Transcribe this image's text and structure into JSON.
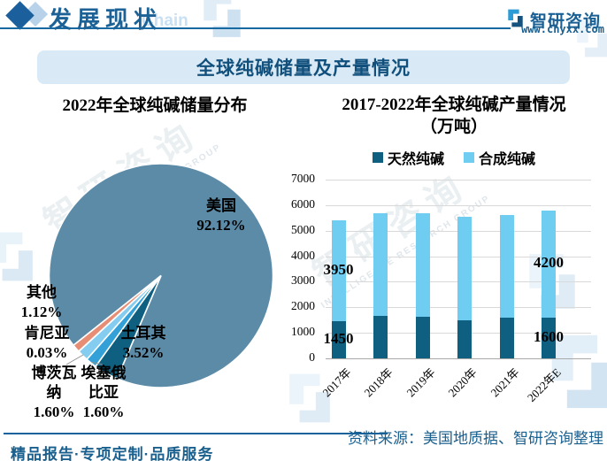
{
  "header": {
    "section_title": "发展现状",
    "watermark_word": "Chain",
    "brand_name": "智研咨询",
    "website": "www.chyxx.com"
  },
  "banner": {
    "title": "全球纯碱储量及产量情况"
  },
  "watermark": {
    "cn": "智研咨询",
    "en": "INTELLIGENCE RESEARCH GROUP"
  },
  "chart_data": [
    {
      "type": "pie",
      "title": "2022年全球纯碱储量分布",
      "unit": "%",
      "start_angle_deg": 231.5,
      "slices": [
        {
          "label": "美国",
          "value": 92.12,
          "pct_text": "92.12%",
          "color": "#5c8ba8"
        },
        {
          "label": "土耳其",
          "value": 3.52,
          "pct_text": "3.52%",
          "color": "#0e5f80"
        },
        {
          "label": "埃塞俄比亚",
          "value": 1.6,
          "pct_text": "1.60%",
          "color": "#33a0d8"
        },
        {
          "label": "博茨瓦纳",
          "value": 1.6,
          "pct_text": "1.60%",
          "color": "#85cdf0"
        },
        {
          "label": "肯尼亚",
          "value": 0.03,
          "pct_text": "0.03%",
          "color": "#ffffff"
        },
        {
          "label": "其他",
          "value": 1.12,
          "pct_text": "1.12%",
          "color": "#e88d75"
        }
      ]
    },
    {
      "type": "bar",
      "subtype": "stacked",
      "title": "2017-2022年全球纯碱产量情况（万吨）",
      "title_line1": "2017-2022年全球纯碱产量情况",
      "title_line2": "（万吨）",
      "categories": [
        "2017年",
        "2018年",
        "2019年",
        "2020年",
        "2021年",
        "2022年E"
      ],
      "series": [
        {
          "name": "天然纯碱",
          "color": "#0e5f80",
          "values": [
            1450,
            1650,
            1630,
            1500,
            1600,
            1600
          ]
        },
        {
          "name": "合成纯碱",
          "color": "#6fcdf1",
          "values": [
            3950,
            4050,
            4070,
            4050,
            4000,
            4200
          ]
        }
      ],
      "value_labels": [
        {
          "series": "合成纯碱",
          "category": "2017年",
          "text": "3950"
        },
        {
          "series": "天然纯碱",
          "category": "2017年",
          "text": "1450"
        },
        {
          "series": "合成纯碱",
          "category": "2022年E",
          "text": "4200"
        },
        {
          "series": "天然纯碱",
          "category": "2022年E",
          "text": "1600"
        }
      ],
      "ylim": [
        0,
        7000
      ],
      "ytick_step": 1000,
      "grid": true,
      "legend_position": "top"
    }
  ],
  "footer": {
    "source": "资料来源：美国地质据、智研咨询整理",
    "tagline": "精品报告·专项定制·品质服务"
  }
}
